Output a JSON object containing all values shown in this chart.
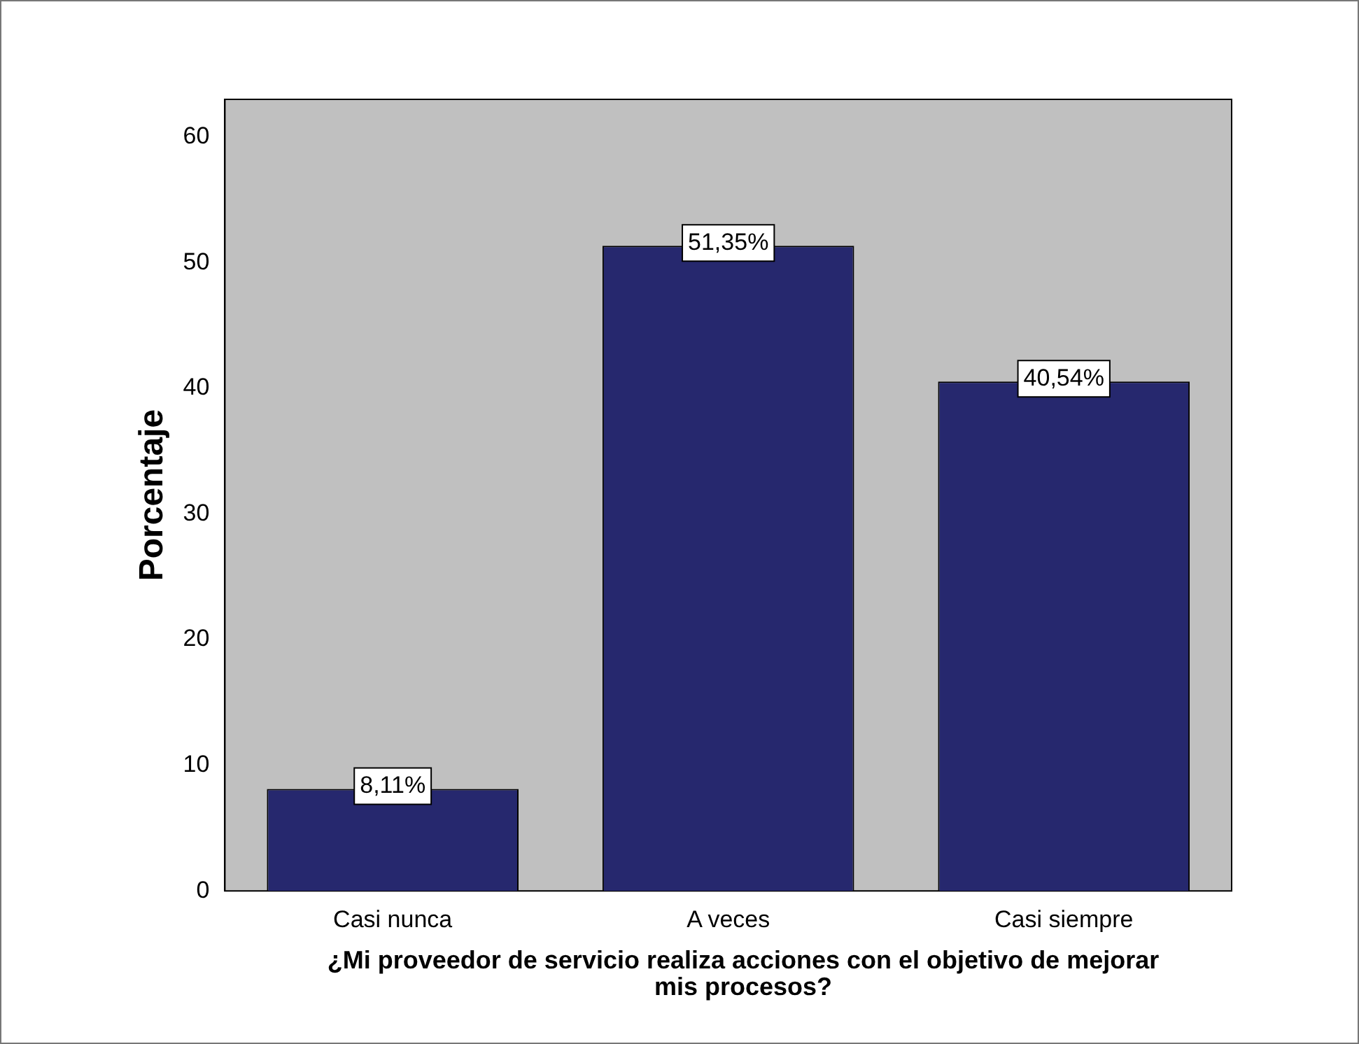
{
  "chart_data": {
    "type": "bar",
    "xlabel": "¿Mi proveedor de servicio realiza acciones con el objetivo de mejorar mis procesos?",
    "ylabel": "Porcentaje",
    "categories": [
      "Casi nunca",
      "A veces",
      "Casi siempre"
    ],
    "values": [
      8.11,
      51.35,
      40.54
    ],
    "value_labels": [
      "8,11%",
      "51,35%",
      "40,54%"
    ],
    "color": "#26286e",
    "ylim": [
      0,
      63
    ],
    "yticks": [
      0,
      10,
      20,
      30,
      40,
      50,
      60
    ]
  }
}
